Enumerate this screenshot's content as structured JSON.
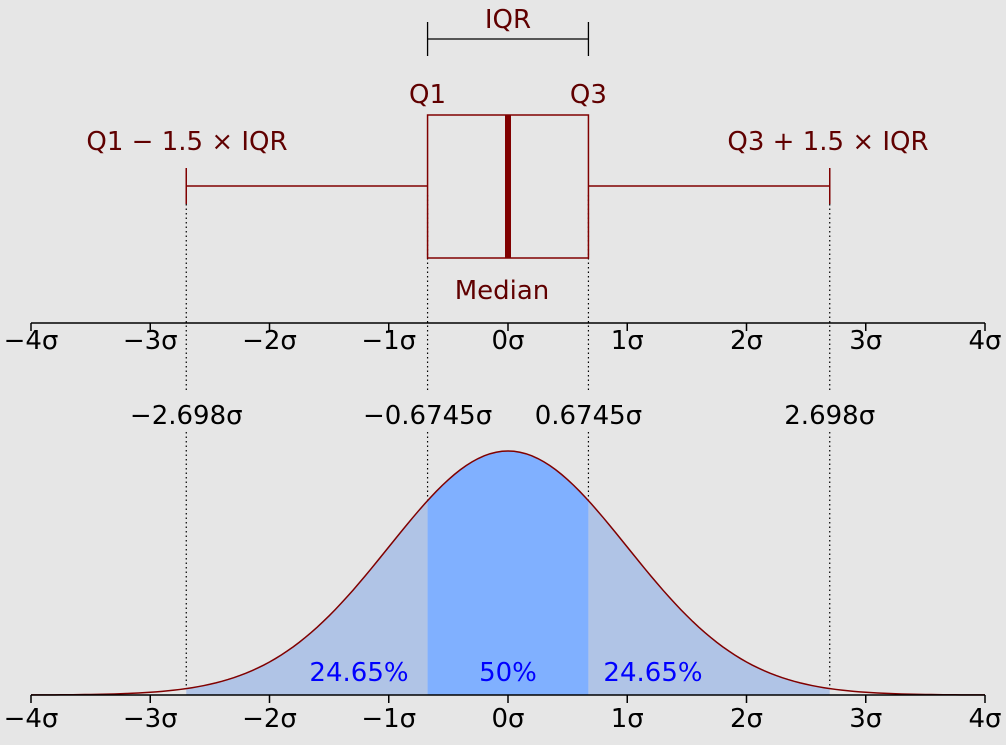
{
  "box_labels": {
    "iqr": "IQR",
    "q1": "Q1",
    "q3": "Q3",
    "lower_whisker": "Q1 − 1.5 × IQR",
    "upper_whisker": "Q3 + 1.5 × IQR",
    "median": "Median"
  },
  "boxplot": {
    "q1": -0.6745,
    "median": 0,
    "q3": 0.6745,
    "lower_whisker": -2.698,
    "upper_whisker": 2.698
  },
  "axis": {
    "min": -4,
    "max": 4,
    "ticks": [
      {
        "value": -4,
        "label": "−4σ"
      },
      {
        "value": -3,
        "label": "−3σ"
      },
      {
        "value": -2,
        "label": "−2σ"
      },
      {
        "value": -1,
        "label": "−1σ"
      },
      {
        "value": 0,
        "label": "0σ"
      },
      {
        "value": 1,
        "label": "1σ"
      },
      {
        "value": 2,
        "label": "2σ"
      },
      {
        "value": 3,
        "label": "3σ"
      },
      {
        "value": 4,
        "label": "4σ"
      }
    ]
  },
  "markers": [
    {
      "value": -2.698,
      "label": "−2.698σ"
    },
    {
      "value": -0.6745,
      "label": "−0.6745σ"
    },
    {
      "value": 0.6745,
      "label": "0.6745σ"
    },
    {
      "value": 2.698,
      "label": "2.698σ"
    }
  ],
  "regions": [
    {
      "from": -2.698,
      "to": -0.6745,
      "label": "24.65%"
    },
    {
      "from": -0.6745,
      "to": 0.6745,
      "label": "50%"
    },
    {
      "from": 0.6745,
      "to": 2.698,
      "label": "24.65%"
    }
  ],
  "colors": {
    "background": "#e6e6e6",
    "box": "#800000",
    "box_text": "#600000",
    "axis": "#000000",
    "outer_fill": "#b0c4e6",
    "inner_fill": "#80b0ff",
    "percent_text": "#0000ff",
    "curve": "#800000"
  }
}
